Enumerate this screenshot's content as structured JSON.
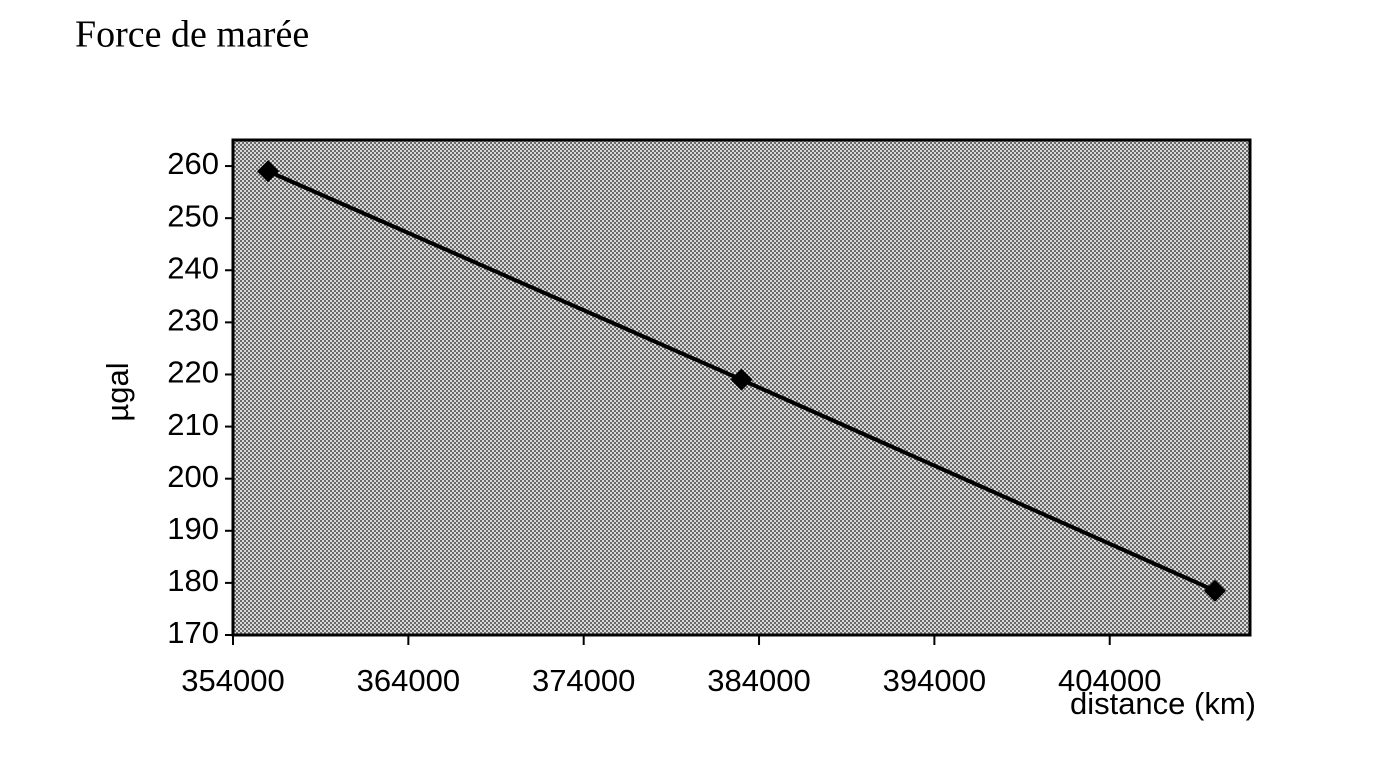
{
  "chart_data": {
    "type": "line",
    "title": "Force de marée",
    "x_label": "distance (km)",
    "y_label": "µgal",
    "x": [
      356000,
      383000,
      410000
    ],
    "values": [
      259,
      219,
      178.5
    ],
    "color": "#000000",
    "xlim": [
      354000,
      412000
    ],
    "xticks": [
      354000,
      364000,
      374000,
      384000,
      394000,
      404000
    ],
    "ylim": [
      170,
      265
    ],
    "yticks": [
      170,
      180,
      190,
      200,
      210,
      220,
      230,
      240,
      250,
      260
    ],
    "grid": false
  }
}
